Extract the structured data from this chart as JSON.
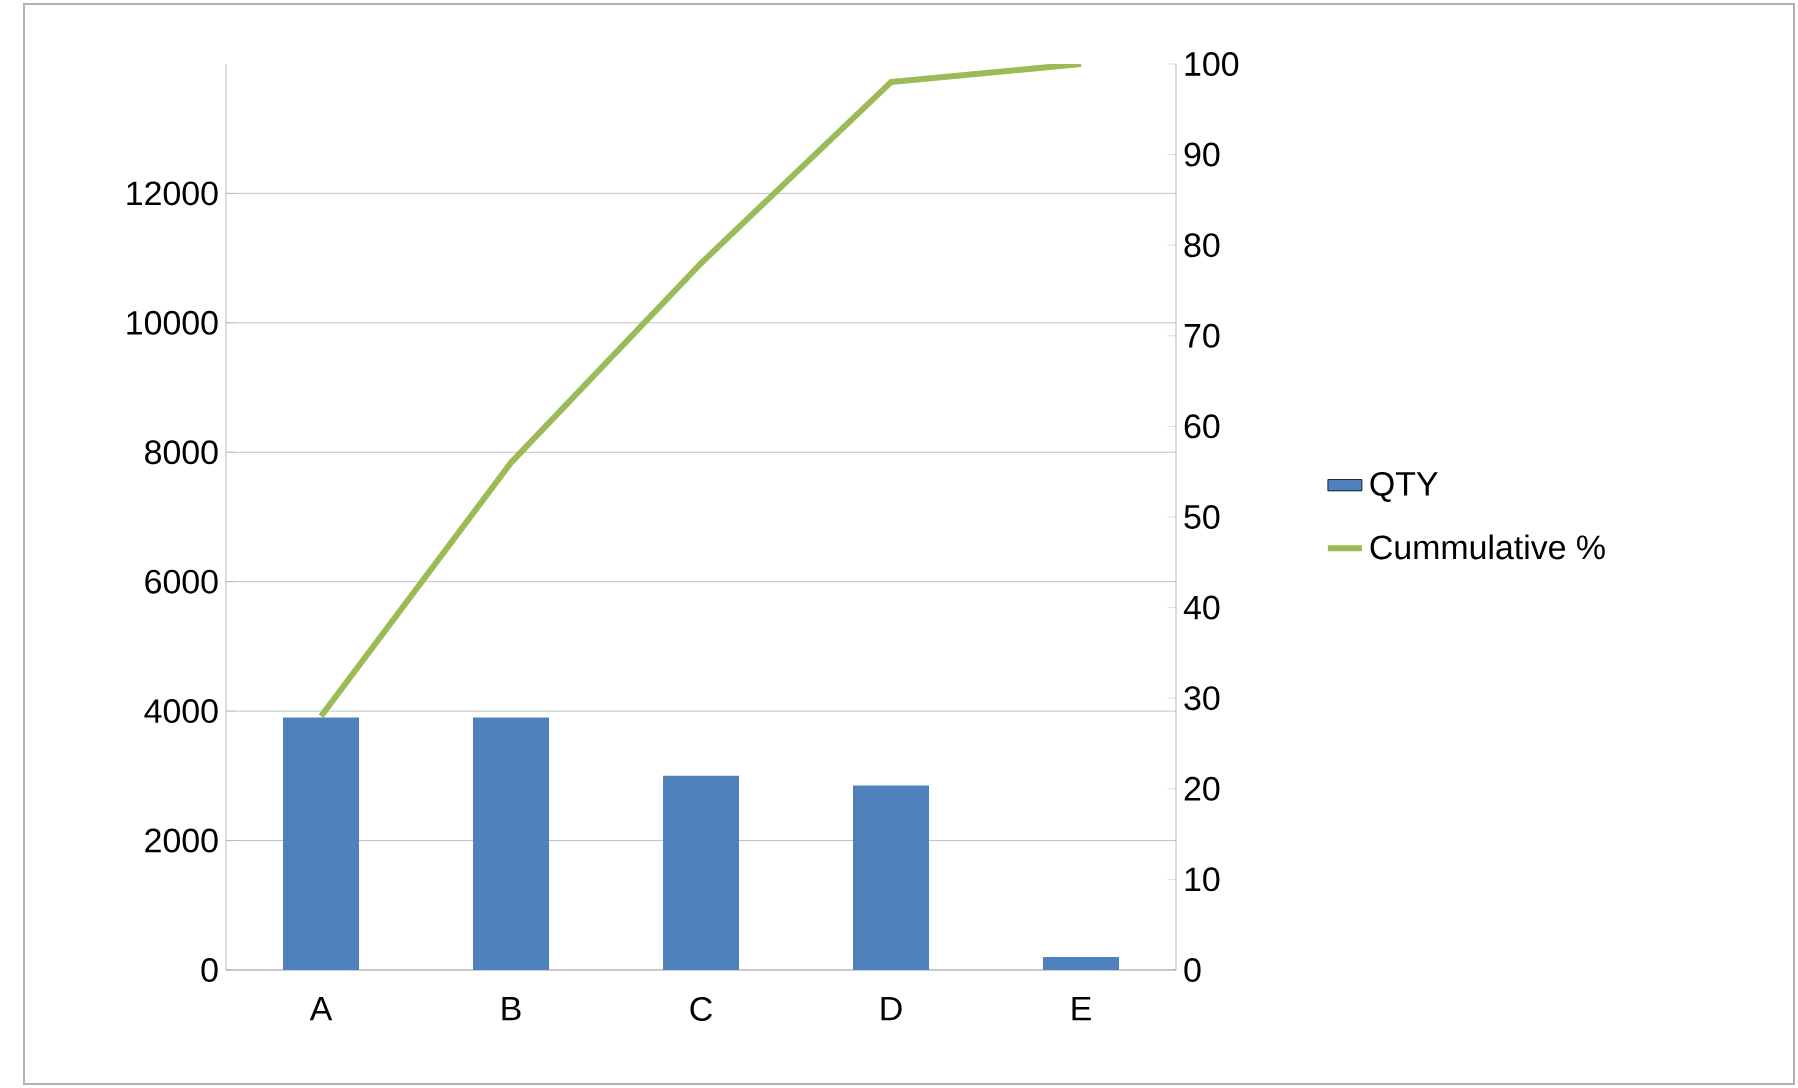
{
  "chart_data": {
    "type": "bar",
    "categories": [
      "A",
      "B",
      "C",
      "D",
      "E"
    ],
    "series": [
      {
        "name": "QTY",
        "color": "#4f81bd",
        "values": [
          3900,
          3900,
          3000,
          2850,
          200
        ]
      },
      {
        "name": "Cummulative %",
        "type": "line",
        "axis": "y2",
        "color": "#9bbb59",
        "marker": "none",
        "values": [
          28,
          56,
          78,
          98,
          100
        ]
      }
    ],
    "ylim": [
      0,
      14000
    ],
    "yticks": [
      0,
      2000,
      4000,
      6000,
      8000,
      10000,
      12000
    ],
    "y2lim": [
      0,
      100
    ],
    "y2ticks": [
      0,
      10,
      20,
      30,
      40,
      50,
      60,
      70,
      80,
      90,
      100
    ],
    "grid": "y",
    "legend": "right"
  }
}
